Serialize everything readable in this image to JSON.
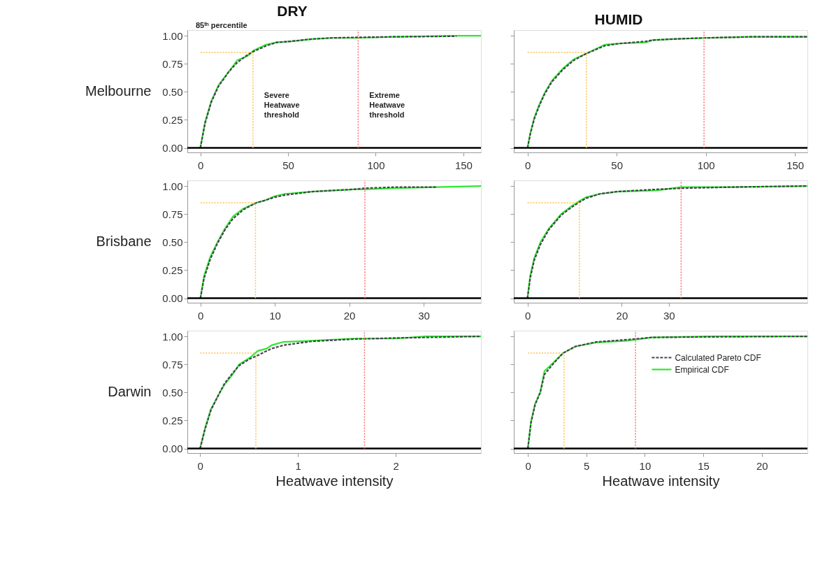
{
  "chart_data": [
    {
      "type": "line",
      "title": "DRY",
      "ylabel": "Melbourne",
      "xlim": [
        -7.4,
        160
      ],
      "ylim": [
        -0.04,
        1.05
      ],
      "xticks": [
        0,
        50,
        100,
        150
      ],
      "yticks": [
        {
          "value": 0,
          "label": "0.00"
        },
        {
          "value": 0.25,
          "label": "0.25"
        },
        {
          "value": 0.5,
          "label": "0.50"
        },
        {
          "value": 0.75,
          "label": "0.75"
        },
        {
          "value": 1,
          "label": "1.00"
        }
      ],
      "x": [
        0,
        2.7,
        6.3,
        10.4,
        16.3,
        21,
        27,
        30.5,
        37.6,
        43.5,
        51.8,
        63.6,
        75,
        89.6,
        111,
        146,
        160
      ],
      "series": [
        {
          "color": "#45404f",
          "line_style": "dashed",
          "values": [
            0,
            0.22,
            0.41,
            0.55,
            0.68,
            0.76,
            0.83,
            0.86,
            0.91,
            0.94,
            0.95,
            0.97,
            0.98,
            0.985,
            0.99,
            0.995,
            null
          ]
        },
        {
          "color": "#2ee82e",
          "line_style": "solid",
          "values": [
            0,
            0.23,
            0.42,
            0.56,
            0.68,
            0.78,
            0.82,
            0.87,
            0.92,
            0.94,
            0.95,
            0.97,
            0.98,
            0.98,
            0.99,
            1.0,
            1.0
          ]
        }
      ],
      "ref_lines": [
        {
          "axis": "y",
          "value": 0,
          "color": "#000000",
          "line_style": "solid"
        },
        {
          "axis": "y",
          "value": 0.85,
          "color": "#ffc04d",
          "line_style": "dotted",
          "label": "85ᵗʰ percentile"
        },
        {
          "axis": "x",
          "value": 30,
          "color": "#ffc04d",
          "line_style": "dotted",
          "label": "Severe Heatwave threshold"
        },
        {
          "axis": "x",
          "value": 90,
          "color": "#ff6b6b",
          "line_style": "dotted",
          "label": "Extreme Heatwave threshold"
        }
      ]
    },
    {
      "type": "line",
      "title": "HUMID",
      "tick_labels": "x",
      "xlim": [
        -7.7,
        157
      ],
      "ylim": [
        -0.04,
        1.05
      ],
      "xticks": [
        0,
        50,
        100,
        150
      ],
      "yticks": [
        {
          "value": 0,
          "label": null
        },
        {
          "value": 0.25,
          "label": null
        },
        {
          "value": 0.5,
          "label": null
        },
        {
          "value": 0.75,
          "label": null
        },
        {
          "value": 1,
          "label": null
        }
      ],
      "x": [
        0,
        1.5,
        3.8,
        6.7,
        9.6,
        13.7,
        20,
        25.9,
        32.9,
        43.3,
        51.5,
        66.5,
        70,
        81.6,
        99,
        125.8,
        157
      ],
      "series": [
        {
          "color": "#45404f",
          "line_style": "dashed",
          "values": [
            0,
            0.12,
            0.26,
            0.38,
            0.48,
            0.59,
            0.7,
            0.78,
            0.84,
            0.91,
            0.93,
            0.95,
            0.96,
            0.97,
            0.98,
            0.99,
            0.99
          ]
        },
        {
          "color": "#2ee82e",
          "line_style": "solid",
          "values": [
            0,
            0.13,
            0.27,
            0.39,
            0.49,
            0.6,
            0.71,
            0.79,
            0.84,
            0.92,
            0.93,
            0.94,
            0.96,
            0.97,
            0.98,
            0.99,
            0.99
          ]
        }
      ],
      "ref_lines": [
        {
          "axis": "y",
          "value": 0,
          "color": "#000000",
          "line_style": "solid"
        },
        {
          "axis": "y",
          "value": 0.85,
          "color": "#ffc04d",
          "line_style": "dotted"
        },
        {
          "axis": "x",
          "value": 33,
          "color": "#ffc04d",
          "line_style": "dotted"
        },
        {
          "axis": "x",
          "value": 99,
          "color": "#ff6b6b",
          "line_style": "dotted"
        }
      ]
    },
    {
      "type": "line",
      "ylabel": "Brisbane",
      "xlim": [
        -1.75,
        37.7
      ],
      "ylim": [
        -0.04,
        1.05
      ],
      "xticks": [
        0,
        10,
        20,
        30
      ],
      "yticks": [
        {
          "value": 0,
          "label": "0.00"
        },
        {
          "value": 0.25,
          "label": "0.25"
        },
        {
          "value": 0.5,
          "label": "0.50"
        },
        {
          "value": 0.75,
          "label": "0.75"
        },
        {
          "value": 1,
          "label": "1.00"
        }
      ],
      "x": [
        0,
        0.5,
        1.34,
        2.3,
        3.3,
        4.4,
        5.8,
        7.5,
        8.6,
        10,
        11.4,
        15,
        20.6,
        22,
        26.1,
        31.7,
        37.7
      ],
      "series": [
        {
          "color": "#45404f",
          "line_style": "dashed",
          "values": [
            0,
            0.18,
            0.35,
            0.49,
            0.61,
            0.71,
            0.79,
            0.85,
            0.87,
            0.9,
            0.92,
            0.95,
            0.97,
            0.98,
            0.99,
            0.99,
            null
          ]
        },
        {
          "color": "#2ee82e",
          "line_style": "solid",
          "values": [
            0,
            0.2,
            0.37,
            0.5,
            0.62,
            0.73,
            0.8,
            0.85,
            0.87,
            0.91,
            0.93,
            0.95,
            0.97,
            0.97,
            0.98,
            0.99,
            1.0
          ]
        }
      ],
      "ref_lines": [
        {
          "axis": "y",
          "value": 0,
          "color": "#000000",
          "line_style": "solid"
        },
        {
          "axis": "y",
          "value": 0.85,
          "color": "#ffc04d",
          "line_style": "dotted"
        },
        {
          "axis": "x",
          "value": 7.4,
          "color": "#ffc04d",
          "line_style": "dotted"
        },
        {
          "axis": "x",
          "value": 22.1,
          "color": "#ff6b6b",
          "line_style": "dotted"
        }
      ]
    },
    {
      "type": "line",
      "tick_labels": "x",
      "xlim": [
        -2.9,
        59.4
      ],
      "ylim": [
        -0.04,
        1.05
      ],
      "xticks": [
        0,
        20,
        30
      ],
      "yticks": [
        {
          "value": 0,
          "label": null
        },
        {
          "value": 0.25,
          "label": null
        },
        {
          "value": 0.5,
          "label": null
        },
        {
          "value": 0.75,
          "label": null
        },
        {
          "value": 1,
          "label": null
        }
      ],
      "x": [
        0,
        0.58,
        1.44,
        2.76,
        4.52,
        7.14,
        9.34,
        10.8,
        12.4,
        15.4,
        19,
        27.4,
        32.6,
        43.2,
        59.4
      ],
      "series": [
        {
          "color": "#45404f",
          "line_style": "dashed",
          "values": [
            0,
            0.18,
            0.34,
            0.48,
            0.61,
            0.74,
            0.81,
            0.85,
            0.89,
            0.93,
            0.95,
            0.97,
            0.98,
            0.99,
            1.0
          ]
        },
        {
          "color": "#2ee82e",
          "line_style": "solid",
          "values": [
            0,
            0.2,
            0.36,
            0.5,
            0.62,
            0.75,
            0.82,
            0.86,
            0.9,
            0.93,
            0.95,
            0.96,
            0.99,
            0.99,
            1.0
          ]
        }
      ],
      "ref_lines": [
        {
          "axis": "y",
          "value": 0,
          "color": "#000000",
          "line_style": "solid"
        },
        {
          "axis": "y",
          "value": 0.85,
          "color": "#ffc04d",
          "line_style": "dotted"
        },
        {
          "axis": "x",
          "value": 11,
          "color": "#ffc04d",
          "line_style": "dotted"
        },
        {
          "axis": "x",
          "value": 32.6,
          "color": "#ff6b6b",
          "line_style": "dotted"
        }
      ]
    },
    {
      "type": "line",
      "ylabel": "Darwin",
      "xlabel": "Heatwave intensity",
      "xlim": [
        -0.13,
        2.87
      ],
      "ylim": [
        -0.04,
        1.05
      ],
      "xticks": [
        0,
        1,
        2
      ],
      "yticks": [
        {
          "value": 0,
          "label": "0.00"
        },
        {
          "value": 0.25,
          "label": "0.25"
        },
        {
          "value": 0.5,
          "label": "0.50"
        },
        {
          "value": 0.75,
          "label": "0.75"
        },
        {
          "value": 1,
          "label": "1.00"
        }
      ],
      "x": [
        0,
        0.05,
        0.11,
        0.19,
        0.25,
        0.34,
        0.4,
        0.51,
        0.59,
        0.68,
        0.73,
        0.85,
        1.14,
        1.57,
        1.99,
        2.31,
        2.87
      ],
      "series": [
        {
          "color": "#45404f",
          "line_style": "dashed",
          "values": [
            0,
            0.17,
            0.34,
            0.48,
            0.58,
            0.68,
            0.74,
            0.8,
            0.83,
            0.87,
            0.89,
            0.92,
            0.955,
            0.975,
            0.985,
            0.99,
            1.0
          ]
        },
        {
          "color": "#2ee82e",
          "line_style": "solid",
          "values": [
            0,
            0.18,
            0.35,
            0.48,
            0.57,
            0.67,
            0.75,
            0.81,
            0.87,
            0.89,
            0.92,
            0.95,
            0.96,
            0.98,
            0.98,
            1.0,
            1.0
          ]
        }
      ],
      "ref_lines": [
        {
          "axis": "y",
          "value": 0,
          "color": "#000000",
          "line_style": "solid"
        },
        {
          "axis": "y",
          "value": 0.85,
          "color": "#ffc04d",
          "line_style": "dotted"
        },
        {
          "axis": "x",
          "value": 0.57,
          "color": "#ffc04d",
          "line_style": "dotted"
        },
        {
          "axis": "x",
          "value": 1.68,
          "color": "#ff6b6b",
          "line_style": "dotted"
        }
      ]
    },
    {
      "type": "line",
      "xlabel": "Heatwave intensity",
      "tick_labels": "x",
      "legend": "right",
      "xlim": [
        -1.2,
        23.9
      ],
      "ylim": [
        -0.04,
        1.05
      ],
      "xticks": [
        0,
        5,
        10,
        15,
        20
      ],
      "yticks": [
        {
          "value": 0,
          "label": null
        },
        {
          "value": 0.25,
          "label": null
        },
        {
          "value": 0.5,
          "label": null
        },
        {
          "value": 0.75,
          "label": null
        },
        {
          "value": 1,
          "label": null
        }
      ],
      "x": [
        0,
        0.27,
        0.62,
        1.06,
        1.42,
        2.13,
        3.0,
        4.08,
        5.85,
        8.5,
        10.6,
        15.6,
        23.9
      ],
      "series": [
        {
          "name": "Calculated Pareto CDF",
          "color": "#45404f",
          "line_style": "dashed",
          "values": [
            0,
            0.23,
            0.39,
            0.5,
            0.66,
            0.75,
            0.85,
            0.91,
            0.95,
            0.97,
            0.99,
            0.995,
            1.0
          ]
        },
        {
          "name": "Empirical CDF",
          "color": "#2ee82e",
          "line_style": "solid",
          "values": [
            0,
            0.24,
            0.4,
            0.5,
            0.69,
            0.76,
            0.85,
            0.91,
            0.945,
            0.96,
            0.99,
            1.0,
            1.0
          ]
        }
      ],
      "ref_lines": [
        {
          "axis": "y",
          "value": 0,
          "color": "#000000",
          "line_style": "solid"
        },
        {
          "axis": "y",
          "value": 0.85,
          "color": "#ffc04d",
          "line_style": "dotted"
        },
        {
          "axis": "x",
          "value": 3.1,
          "color": "#ffc04d",
          "line_style": "dotted"
        },
        {
          "axis": "x",
          "value": 9.2,
          "color": "#ff6b6b",
          "line_style": "dotted"
        }
      ]
    }
  ]
}
